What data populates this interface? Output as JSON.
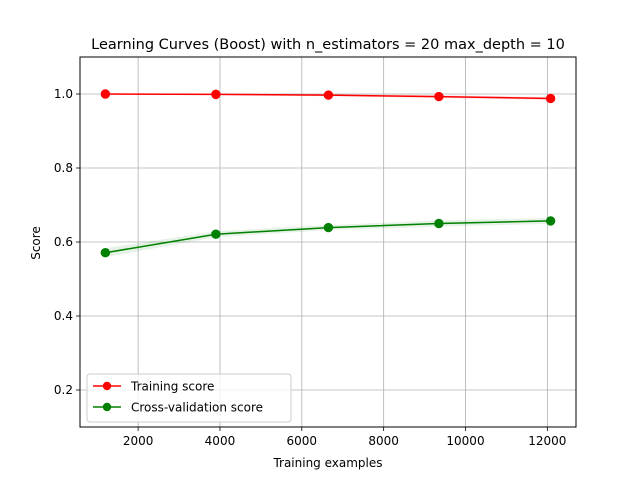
{
  "chart_data": {
    "type": "line",
    "title": "Learning Curves (Boost) with n_estimators = 20 max_depth = 10",
    "xlabel": "Training examples",
    "ylabel": "Score",
    "xlim": [
      580,
      12700
    ],
    "ylim": [
      0.1,
      1.1
    ],
    "xticks": [
      2000,
      4000,
      6000,
      8000,
      10000,
      12000
    ],
    "yticks": [
      0.2,
      0.4,
      0.6,
      0.8,
      1.0
    ],
    "xtick_labels": [
      "2000",
      "4000",
      "6000",
      "8000",
      "10000",
      "12000"
    ],
    "ytick_labels": [
      "0.2",
      "0.4",
      "0.6",
      "0.8",
      "1.0"
    ],
    "grid": true,
    "legend_position": "lower-left",
    "x": [
      1200,
      3900,
      6650,
      9350,
      12080
    ],
    "series": [
      {
        "name": "Training score",
        "color": "#ff0000",
        "values": [
          1.0,
          0.999,
          0.997,
          0.993,
          0.988
        ],
        "band": [
          0.002,
          0.002,
          0.003,
          0.004,
          0.004
        ]
      },
      {
        "name": "Cross-validation score",
        "color": "#008000",
        "values": [
          0.571,
          0.621,
          0.639,
          0.65,
          0.657
        ],
        "band": [
          0.012,
          0.008,
          0.007,
          0.008,
          0.008
        ]
      }
    ]
  }
}
